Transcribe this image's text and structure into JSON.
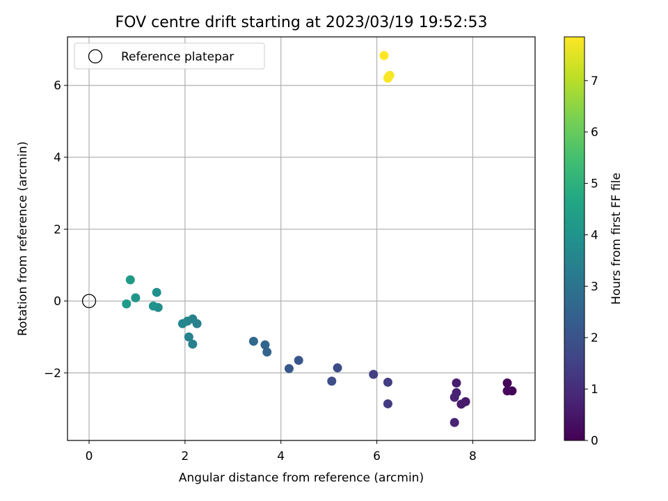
{
  "chart_data": {
    "type": "scatter",
    "title": "FOV centre drift starting at 2023/03/19 19:52:53",
    "xlabel": "Angular distance from reference (arcmin)",
    "ylabel": "Rotation from reference (arcmin)",
    "xlim": [
      -0.45,
      9.3
    ],
    "ylim": [
      -3.88,
      7.35
    ],
    "xticks": [
      0,
      2,
      4,
      6,
      8
    ],
    "xtick_labels": [
      "0",
      "2",
      "4",
      "6",
      "8"
    ],
    "yticks": [
      -2,
      0,
      2,
      4,
      6
    ],
    "ytick_labels": [
      "−2",
      "0",
      "2",
      "4",
      "6"
    ],
    "grid": true,
    "legend": {
      "placement": "top-left",
      "entries": [
        "Reference platepar"
      ]
    },
    "reference_point": {
      "x": 0,
      "y": 0,
      "label": "Reference platepar"
    },
    "colorbar": {
      "label": "Hours from first FF file",
      "range": [
        0,
        7.85
      ],
      "ticks": [
        0,
        1,
        2,
        3,
        4,
        5,
        6,
        7
      ],
      "tick_labels": [
        "0",
        "1",
        "2",
        "3",
        "4",
        "5",
        "6",
        "7"
      ],
      "colormap": "viridis"
    },
    "points": [
      {
        "x": 8.82,
        "y": -2.5,
        "hours": 0.05
      },
      {
        "x": 8.72,
        "y": -2.28,
        "hours": 0.1
      },
      {
        "x": 8.72,
        "y": -2.5,
        "hours": 0.15
      },
      {
        "x": 7.85,
        "y": -2.8,
        "hours": 0.55
      },
      {
        "x": 7.76,
        "y": -2.87,
        "hours": 0.6
      },
      {
        "x": 7.66,
        "y": -2.28,
        "hours": 0.65
      },
      {
        "x": 7.66,
        "y": -2.55,
        "hours": 0.7
      },
      {
        "x": 7.62,
        "y": -2.68,
        "hours": 0.75
      },
      {
        "x": 7.62,
        "y": -3.38,
        "hours": 0.8
      },
      {
        "x": 6.23,
        "y": -2.86,
        "hours": 1.35
      },
      {
        "x": 6.23,
        "y": -2.26,
        "hours": 1.4
      },
      {
        "x": 5.93,
        "y": -2.04,
        "hours": 1.45
      },
      {
        "x": 5.18,
        "y": -1.86,
        "hours": 1.8
      },
      {
        "x": 5.06,
        "y": -2.23,
        "hours": 1.85
      },
      {
        "x": 4.37,
        "y": -1.65,
        "hours": 2.1
      },
      {
        "x": 4.17,
        "y": -1.88,
        "hours": 2.15
      },
      {
        "x": 3.71,
        "y": -1.42,
        "hours": 2.5
      },
      {
        "x": 3.67,
        "y": -1.22,
        "hours": 2.55
      },
      {
        "x": 3.43,
        "y": -1.12,
        "hours": 2.65
      },
      {
        "x": 2.25,
        "y": -0.63,
        "hours": 3.35
      },
      {
        "x": 2.16,
        "y": -1.2,
        "hours": 3.4
      },
      {
        "x": 2.16,
        "y": -0.5,
        "hours": 3.45
      },
      {
        "x": 2.08,
        "y": -1.0,
        "hours": 3.5
      },
      {
        "x": 2.05,
        "y": -0.56,
        "hours": 3.55
      },
      {
        "x": 1.95,
        "y": -0.63,
        "hours": 3.6
      },
      {
        "x": 1.44,
        "y": -0.18,
        "hours": 3.85
      },
      {
        "x": 1.41,
        "y": 0.24,
        "hours": 3.9
      },
      {
        "x": 1.34,
        "y": -0.14,
        "hours": 3.95
      },
      {
        "x": 0.97,
        "y": 0.09,
        "hours": 4.1
      },
      {
        "x": 0.86,
        "y": 0.59,
        "hours": 4.2
      },
      {
        "x": 0.78,
        "y": -0.08,
        "hours": 4.25
      },
      {
        "x": 6.27,
        "y": 6.28,
        "hours": 7.75
      },
      {
        "x": 6.25,
        "y": 6.25,
        "hours": 7.78
      },
      {
        "x": 6.23,
        "y": 6.2,
        "hours": 7.8
      },
      {
        "x": 6.15,
        "y": 6.83,
        "hours": 7.85
      }
    ]
  }
}
